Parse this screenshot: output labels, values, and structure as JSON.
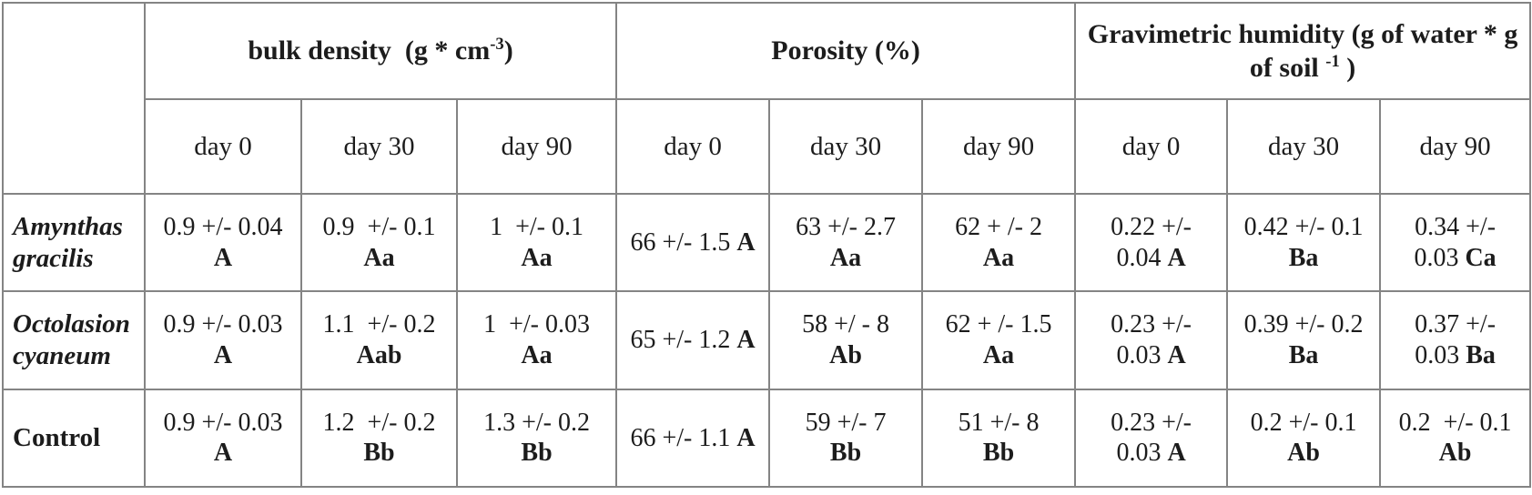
{
  "table": {
    "border_color": "#848484",
    "text_color": "#1c1c1c",
    "background_color": "#ffffff",
    "column_groups": [
      {
        "key": "bulk-density",
        "label_text": "bulk density (g * cm-3)",
        "label_parts": [
          {
            "t": "bulk density  (g * cm"
          },
          {
            "t": "-3",
            "sup": true
          },
          {
            "t": ")"
          }
        ]
      },
      {
        "key": "porosity",
        "label_text": "Porosity (%)",
        "label_parts": [
          {
            "t": "Porosity (%)"
          }
        ]
      },
      {
        "key": "gravimetric-humidity",
        "label_text": "Gravimetric humidity (g of water * g of soil -1 )",
        "label_parts": [
          {
            "t": "Gravimetric humidity (g of water * g"
          },
          {
            "br": true
          },
          {
            "t": "of soil "
          },
          {
            "t": "-1",
            "sup": true
          },
          {
            "t": " )"
          }
        ]
      }
    ],
    "day_headers_flat": [
      "day 0",
      "day 30",
      "day 90",
      "day 0",
      "day 30",
      "day 90",
      "day 0",
      "day 30",
      "day 90"
    ],
    "rows": [
      {
        "key": "amynthas-gracilis",
        "label_lines": [
          "Amynthas",
          "gracilis"
        ],
        "italic": true,
        "cells": [
          {
            "lines": [
              [
                {
                  "t": "0.9 +/- 0.04"
                }
              ],
              [
                {
                  "t": "A",
                  "b": true
                }
              ]
            ]
          },
          {
            "lines": [
              [
                {
                  "t": "0.9  +/- 0.1"
                }
              ],
              [
                {
                  "t": "Aa",
                  "b": true
                }
              ]
            ]
          },
          {
            "lines": [
              [
                {
                  "t": "1  +/- 0.1"
                }
              ],
              [
                {
                  "t": "Aa",
                  "b": true
                }
              ]
            ]
          },
          {
            "lines": [
              [
                {
                  "t": "66 +/- 1.5 "
                },
                {
                  "t": "A",
                  "b": true
                }
              ]
            ]
          },
          {
            "lines": [
              [
                {
                  "t": "63 +/- 2.7"
                }
              ],
              [
                {
                  "t": "Aa",
                  "b": true
                }
              ]
            ]
          },
          {
            "lines": [
              [
                {
                  "t": "62 + /- 2"
                }
              ],
              [
                {
                  "t": "Aa",
                  "b": true
                }
              ]
            ]
          },
          {
            "lines": [
              [
                {
                  "t": "0.22 +/-"
                }
              ],
              [
                {
                  "t": "0.04 "
                },
                {
                  "t": "A",
                  "b": true
                }
              ]
            ]
          },
          {
            "lines": [
              [
                {
                  "t": "0.42 +/- 0.1"
                }
              ],
              [
                {
                  "t": "Ba",
                  "b": true
                }
              ]
            ]
          },
          {
            "lines": [
              [
                {
                  "t": "0.34 +/-"
                }
              ],
              [
                {
                  "t": "0.03 "
                },
                {
                  "t": "Ca",
                  "b": true
                }
              ]
            ]
          }
        ]
      },
      {
        "key": "octolasion-cyaneum",
        "label_lines": [
          "Octolasion",
          "cyaneum"
        ],
        "italic": true,
        "cells": [
          {
            "lines": [
              [
                {
                  "t": "0.9 +/- 0.03"
                }
              ],
              [
                {
                  "t": "A",
                  "b": true
                }
              ]
            ]
          },
          {
            "lines": [
              [
                {
                  "t": "1.1  +/- 0.2"
                }
              ],
              [
                {
                  "t": "Aab",
                  "b": true
                }
              ]
            ]
          },
          {
            "lines": [
              [
                {
                  "t": "1  +/- 0.03"
                }
              ],
              [
                {
                  "t": "Aa",
                  "b": true
                }
              ]
            ]
          },
          {
            "lines": [
              [
                {
                  "t": "65 +/- 1.2 "
                },
                {
                  "t": "A",
                  "b": true
                }
              ]
            ]
          },
          {
            "lines": [
              [
                {
                  "t": "58 +/ - 8"
                }
              ],
              [
                {
                  "t": "Ab",
                  "b": true
                }
              ]
            ]
          },
          {
            "lines": [
              [
                {
                  "t": "62 + /- 1.5"
                }
              ],
              [
                {
                  "t": "Aa",
                  "b": true
                }
              ]
            ]
          },
          {
            "lines": [
              [
                {
                  "t": "0.23 +/-"
                }
              ],
              [
                {
                  "t": "0.03 "
                },
                {
                  "t": "A",
                  "b": true
                }
              ]
            ]
          },
          {
            "lines": [
              [
                {
                  "t": "0.39 +/- 0.2"
                }
              ],
              [
                {
                  "t": "Ba",
                  "b": true
                }
              ]
            ]
          },
          {
            "lines": [
              [
                {
                  "t": "0.37 +/-"
                }
              ],
              [
                {
                  "t": "0.03 "
                },
                {
                  "t": "Ba",
                  "b": true
                }
              ]
            ]
          }
        ]
      },
      {
        "key": "control",
        "label_lines": [
          "Control"
        ],
        "italic": false,
        "cells": [
          {
            "lines": [
              [
                {
                  "t": "0.9 +/- 0.03"
                }
              ],
              [
                {
                  "t": "A",
                  "b": true
                }
              ]
            ]
          },
          {
            "lines": [
              [
                {
                  "t": "1.2  +/- 0.2"
                }
              ],
              [
                {
                  "t": "Bb",
                  "b": true
                }
              ]
            ]
          },
          {
            "lines": [
              [
                {
                  "t": "1.3 +/- 0.2"
                }
              ],
              [
                {
                  "t": "Bb",
                  "b": true
                }
              ]
            ]
          },
          {
            "lines": [
              [
                {
                  "t": "66 +/- 1.1 "
                },
                {
                  "t": "A",
                  "b": true
                }
              ]
            ]
          },
          {
            "lines": [
              [
                {
                  "t": "59 +/- 7"
                }
              ],
              [
                {
                  "t": "Bb",
                  "b": true
                }
              ]
            ]
          },
          {
            "lines": [
              [
                {
                  "t": "51 +/- 8"
                }
              ],
              [
                {
                  "t": "Bb",
                  "b": true
                }
              ]
            ]
          },
          {
            "lines": [
              [
                {
                  "t": "0.23 +/-"
                }
              ],
              [
                {
                  "t": "0.03 "
                },
                {
                  "t": "A",
                  "b": true
                }
              ]
            ]
          },
          {
            "lines": [
              [
                {
                  "t": "0.2 +/- 0.1"
                }
              ],
              [
                {
                  "t": "Ab",
                  "b": true
                }
              ]
            ]
          },
          {
            "lines": [
              [
                {
                  "t": "0.2  +/- 0.1"
                }
              ],
              [
                {
                  "t": "Ab",
                  "b": true
                }
              ]
            ]
          }
        ]
      }
    ]
  }
}
